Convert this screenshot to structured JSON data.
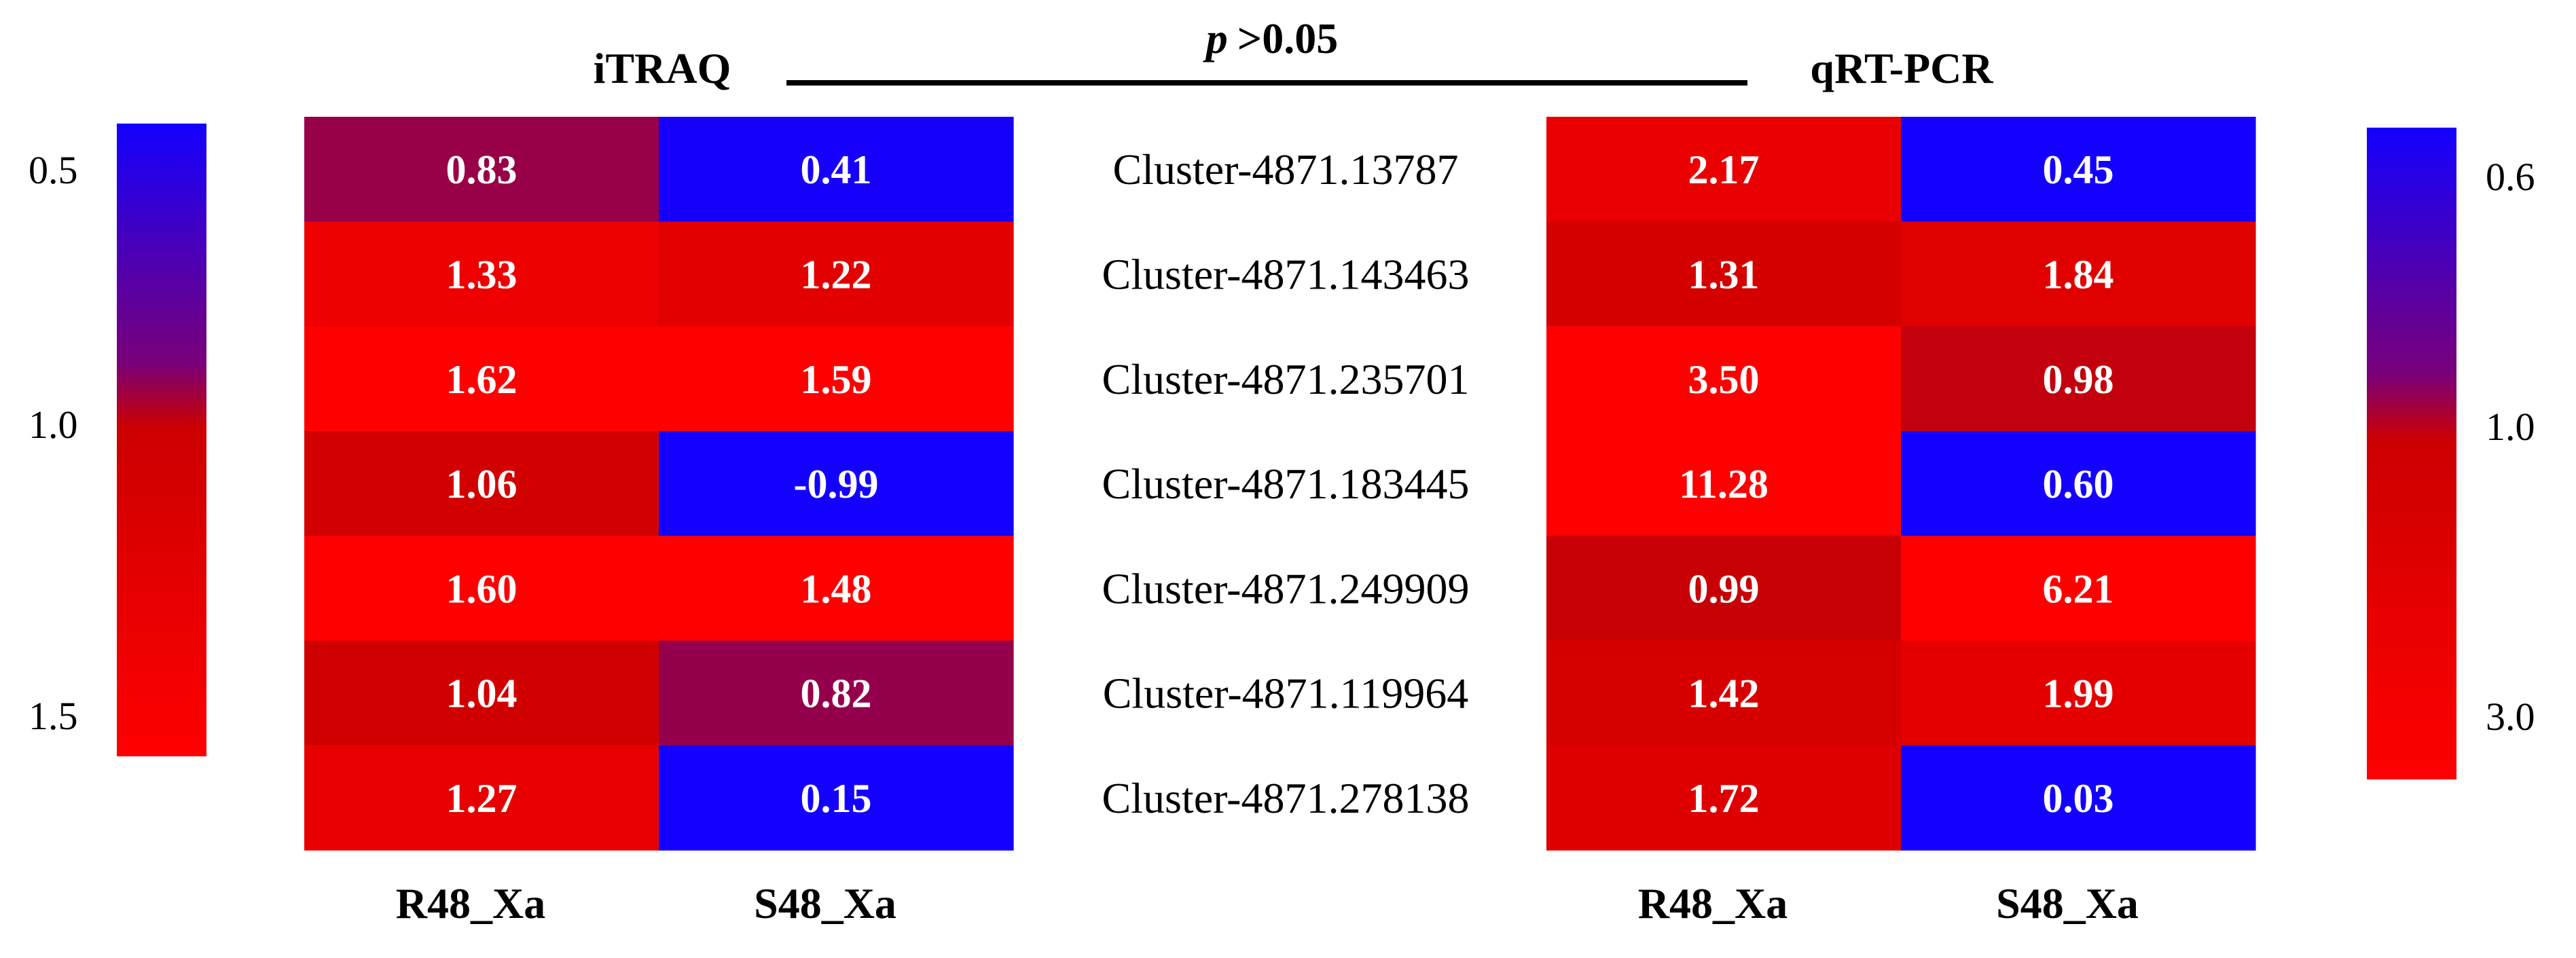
{
  "chart_data": {
    "type": "heatmap",
    "title": ">0.05",
    "title_italic_prefix": "p",
    "rows": [
      "Cluster-4871.13787",
      "Cluster-4871.143463",
      "Cluster-4871.235701",
      "Cluster-4871.183445",
      "Cluster-4871.249909",
      "Cluster-4871.119964",
      "Cluster-4871.278138"
    ],
    "panels": [
      {
        "name": "iTRAQ",
        "columns": [
          "R48_Xa",
          "S48_Xa"
        ],
        "values": [
          [
            "0.83",
            "0.41"
          ],
          [
            "1.33",
            "1.22"
          ],
          [
            "1.62",
            "1.59"
          ],
          [
            "1.06",
            "-0.99"
          ],
          [
            "1.60",
            "1.48"
          ],
          [
            "1.04",
            "0.82"
          ],
          [
            "1.27",
            "0.15"
          ]
        ],
        "colorbar": {
          "side": "left",
          "ticks": [
            "0.5",
            "1.0",
            "1.5"
          ],
          "range": [
            0.4,
            1.5
          ]
        }
      },
      {
        "name": "qRT-PCR",
        "columns": [
          "R48_Xa",
          "S48_Xa"
        ],
        "values": [
          [
            "2.17",
            "0.45"
          ],
          [
            "1.31",
            "1.84"
          ],
          [
            "3.50",
            "0.98"
          ],
          [
            "11.28",
            "0.60"
          ],
          [
            "0.99",
            "6.21"
          ],
          [
            "1.42",
            "1.99"
          ],
          [
            "1.72",
            "0.03"
          ]
        ],
        "colorbar": {
          "side": "right",
          "ticks": [
            "0.6",
            "1.0",
            "3.0"
          ],
          "range": [
            0.6,
            3.0
          ]
        }
      }
    ],
    "colors": {
      "low": "#1400ff",
      "mid": "#cc0000",
      "high": "#ff0000"
    }
  }
}
